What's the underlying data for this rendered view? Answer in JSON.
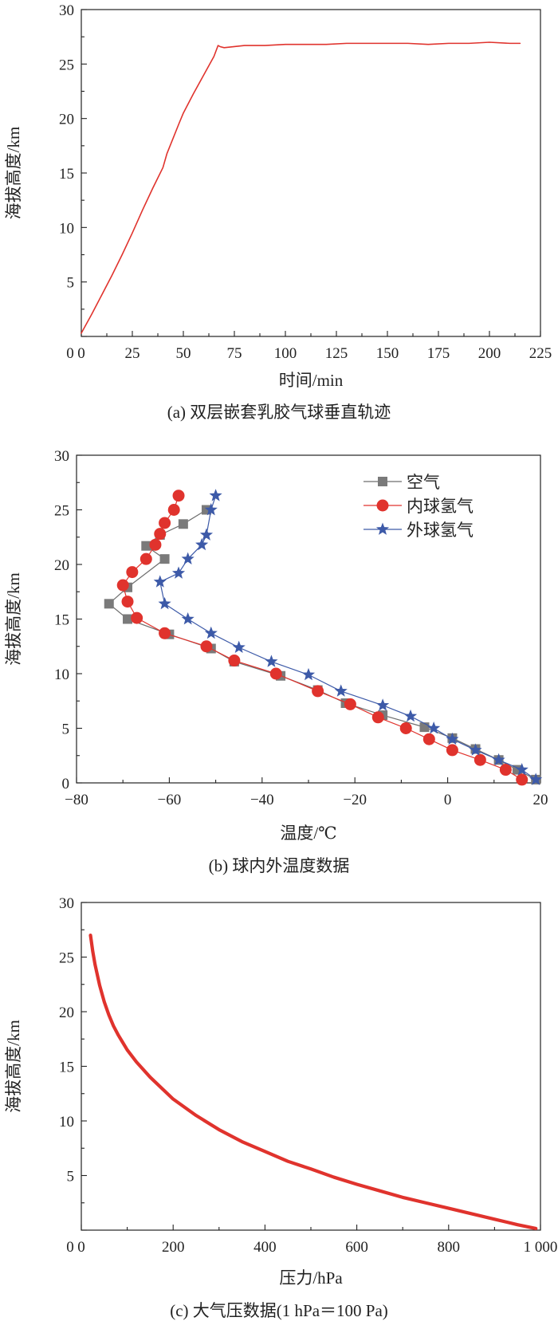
{
  "colors": {
    "red": "#e0332d",
    "gray_line": "#6e6e6e",
    "gray_marker": "#7a7a7a",
    "blue": "#3d5aa8"
  },
  "chart_data": [
    {
      "id": "a",
      "type": "line",
      "caption": "(a) 双层嵌套乳胶气球垂直轨迹",
      "xlabel": "时间/min",
      "ylabel": "海拔高度/km",
      "xlim": [
        0,
        225
      ],
      "ylim": [
        0,
        30
      ],
      "xticks": [
        0,
        25,
        50,
        75,
        100,
        125,
        150,
        175,
        200,
        225
      ],
      "yticks": [
        5,
        10,
        15,
        20,
        25,
        30
      ],
      "grid": false,
      "series": [
        {
          "color": "#e0332d",
          "x": [
            0,
            5,
            10,
            15,
            20,
            25,
            30,
            35,
            40,
            42,
            45,
            48,
            50,
            55,
            60,
            65,
            67,
            68,
            70,
            75,
            80,
            90,
            100,
            110,
            120,
            130,
            140,
            150,
            160,
            170,
            180,
            190,
            200,
            210,
            215
          ],
          "y": [
            0.3,
            2.0,
            3.8,
            5.6,
            7.5,
            9.5,
            11.6,
            13.6,
            15.5,
            16.8,
            18.2,
            19.6,
            20.5,
            22.3,
            24.0,
            25.7,
            26.7,
            26.6,
            26.5,
            26.6,
            26.7,
            26.7,
            26.8,
            26.8,
            26.8,
            26.9,
            26.9,
            26.9,
            26.9,
            26.8,
            26.9,
            26.9,
            27.0,
            26.9,
            26.9
          ]
        }
      ]
    },
    {
      "id": "b",
      "type": "line",
      "caption": "(b) 球内外温度数据",
      "xlabel": "温度/℃",
      "ylabel": "海拔高度/km",
      "xlim": [
        -80,
        20
      ],
      "ylim": [
        0,
        30
      ],
      "xticks": [
        -80,
        -60,
        -40,
        -20,
        0,
        20
      ],
      "xtick_labels": [
        "−80",
        "−60",
        "−40",
        "−20",
        "0",
        "20"
      ],
      "yticks": [
        0,
        5,
        10,
        15,
        20,
        25,
        30
      ],
      "grid": false,
      "legend": "top-right",
      "series": [
        {
          "name": "空气",
          "marker": "square",
          "color": "#7a7a7a",
          "x": [
            19,
            15,
            11,
            6,
            1,
            -5,
            -14,
            -22,
            -28,
            -36,
            -46,
            -51,
            -60,
            -69,
            -73,
            -69,
            -61,
            -65,
            -62,
            -57,
            -52
          ],
          "y": [
            0.3,
            1.2,
            2.1,
            3.1,
            4.1,
            5.1,
            6.2,
            7.3,
            8.5,
            9.8,
            11.1,
            12.3,
            13.6,
            15.0,
            16.4,
            17.9,
            20.5,
            21.7,
            22.7,
            23.7,
            25.0
          ]
        },
        {
          "name": "内球氢气",
          "marker": "circle",
          "color": "#e0332d",
          "x": [
            16,
            12.5,
            7,
            1,
            -4,
            -9,
            -15,
            -21,
            -28,
            -37,
            -46,
            -52,
            -61,
            -67,
            -69,
            -70,
            -68,
            -65,
            -63,
            -62,
            -61,
            -59,
            -58
          ],
          "y": [
            0.3,
            1.2,
            2.1,
            3.0,
            4.0,
            5.0,
            6.0,
            7.2,
            8.4,
            10.0,
            11.2,
            12.5,
            13.7,
            15.1,
            16.6,
            18.1,
            19.3,
            20.5,
            21.8,
            22.8,
            23.8,
            25.0,
            26.3
          ]
        },
        {
          "name": "外球氢气",
          "marker": "star",
          "color": "#3d5aa8",
          "x": [
            19,
            16,
            11,
            6,
            1,
            -3,
            -8,
            -14,
            -23,
            -30,
            -38,
            -45,
            -51,
            -56,
            -61,
            -62,
            -58,
            -56,
            -53,
            -52,
            -51,
            -50
          ],
          "y": [
            0.3,
            1.2,
            2.1,
            3.0,
            4.0,
            5.0,
            6.1,
            7.1,
            8.4,
            9.9,
            11.1,
            12.4,
            13.7,
            15.0,
            16.4,
            18.4,
            19.2,
            20.5,
            21.8,
            22.7,
            25.0,
            26.3
          ]
        }
      ]
    },
    {
      "id": "c",
      "type": "line",
      "caption": "(c) 大气压数据(1 hPa＝100 Pa)",
      "xlabel": "压力/hPa",
      "ylabel": "海拔高度/km",
      "xlim": [
        0,
        1000
      ],
      "ylim": [
        0,
        30
      ],
      "xticks": [
        0,
        200,
        400,
        600,
        800,
        1000
      ],
      "xtick_labels": [
        "0",
        "200",
        "400",
        "600",
        "800",
        "1 000"
      ],
      "yticks": [
        5,
        10,
        15,
        20,
        25,
        30
      ],
      "grid": false,
      "series": [
        {
          "color": "#e0332d",
          "x": [
            20,
            25,
            30,
            40,
            50,
            60,
            70,
            80,
            90,
            100,
            120,
            150,
            200,
            250,
            300,
            350,
            400,
            450,
            500,
            550,
            600,
            650,
            700,
            750,
            800,
            850,
            900,
            950,
            990
          ],
          "y": [
            27.0,
            25.5,
            24.3,
            22.4,
            20.9,
            19.7,
            18.7,
            17.9,
            17.2,
            16.5,
            15.4,
            14.0,
            12.0,
            10.5,
            9.2,
            8.1,
            7.2,
            6.3,
            5.6,
            4.85,
            4.2,
            3.6,
            3.0,
            2.5,
            2.0,
            1.5,
            1.0,
            0.5,
            0.15
          ]
        }
      ]
    }
  ]
}
